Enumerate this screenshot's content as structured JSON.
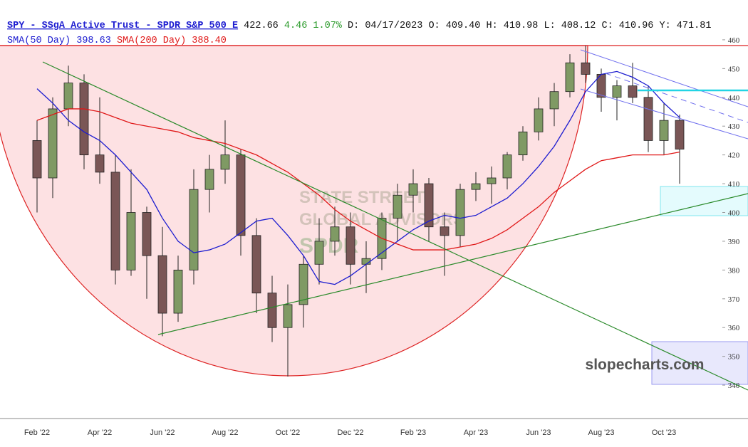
{
  "chart_data": {
    "type": "candlestick",
    "header": {
      "symbol": "SPY - SSgA Active Trust - SPDR S&P 500 E",
      "last": "422.66",
      "change": "4.46",
      "change_pct": "1.07%",
      "details": "D: 04/17/2023 O: 409.40 H: 410.98 L: 408.12 C: 410.96 Y: 471.81"
    },
    "watermark": "slopecharts.com",
    "logo": [
      "STATE STREET",
      "GLOBAL ADVISORS",
      "SPDR"
    ],
    "categories": [
      null,
      null,
      "Feb '22",
      null,
      null,
      null,
      "Apr '22",
      null,
      null,
      null,
      "Jun '22",
      null,
      null,
      null,
      "Aug '22",
      null,
      null,
      null,
      "Oct '22",
      null,
      null,
      null,
      "Dec '22",
      null,
      null,
      null,
      "Feb '23",
      null,
      null,
      null,
      "Apr '23",
      null,
      null,
      null,
      "Jun '23",
      null,
      null,
      null,
      "Aug '23",
      null,
      null,
      null,
      "Oct '23",
      null
    ],
    "ohlc": {
      "up_color": "#7f9a64",
      "down_color": "#7a5656",
      "open": [
        null,
        null,
        425,
        412,
        436,
        445,
        420,
        414,
        380,
        400,
        385,
        365,
        380,
        408,
        415,
        420,
        392,
        372,
        360,
        368,
        382,
        390,
        395,
        382,
        384,
        398,
        406,
        410,
        395,
        392,
        408,
        410,
        412,
        420,
        428,
        436,
        442,
        452,
        448,
        440,
        444,
        440,
        425,
        432
      ],
      "high": [
        null,
        null,
        432,
        440,
        451,
        448,
        440,
        420,
        415,
        402,
        395,
        385,
        415,
        420,
        432,
        422,
        398,
        378,
        375,
        385,
        398,
        402,
        400,
        390,
        400,
        410,
        415,
        412,
        400,
        410,
        414,
        416,
        421,
        430,
        440,
        445,
        455,
        458,
        450,
        446,
        452,
        444,
        438,
        434
      ],
      "low": [
        null,
        null,
        400,
        405,
        430,
        415,
        410,
        375,
        378,
        370,
        357,
        362,
        375,
        400,
        410,
        385,
        365,
        355,
        343,
        360,
        375,
        385,
        375,
        372,
        380,
        390,
        400,
        390,
        378,
        388,
        404,
        403,
        408,
        418,
        425,
        430,
        440,
        445,
        435,
        432,
        438,
        421,
        420,
        410
      ],
      "close": [
        null,
        null,
        412,
        436,
        445,
        420,
        414,
        380,
        400,
        385,
        365,
        380,
        408,
        415,
        420,
        392,
        372,
        360,
        368,
        382,
        390,
        395,
        382,
        384,
        398,
        406,
        410,
        395,
        392,
        408,
        410,
        412,
        420,
        428,
        436,
        442,
        452,
        448,
        440,
        444,
        440,
        425,
        432,
        422
      ]
    },
    "overlays": [
      {
        "name": "SMA(50 Day)",
        "last": "398.63",
        "color": "#1c1cd0",
        "values": [
          null,
          null,
          443,
          438,
          432,
          428,
          425,
          420,
          414,
          408,
          398,
          390,
          386,
          387,
          389,
          393,
          397,
          398,
          392,
          385,
          376,
          375,
          378,
          382,
          386,
          390,
          394,
          397,
          399,
          398,
          399,
          402,
          405,
          410,
          416,
          423,
          432,
          442,
          448,
          449,
          447,
          444,
          438,
          433
        ]
      },
      {
        "name": "SMA(200 Day)",
        "last": "388.40",
        "color": "#e01818",
        "values": [
          null,
          null,
          432,
          434,
          436,
          436,
          435,
          433,
          431,
          430,
          429,
          428,
          426,
          425,
          424,
          422,
          420,
          417,
          414,
          410,
          406,
          401,
          397,
          394,
          391,
          389,
          387,
          387,
          387,
          388,
          389,
          391,
          394,
          398,
          402,
          407,
          411,
          415,
          418,
          419,
          420,
          420,
          420,
          421
        ]
      }
    ],
    "ylim": [
      328.4,
      462.7
    ],
    "yticks": [
      340,
      350,
      360,
      370,
      380,
      390,
      400,
      410,
      420,
      430,
      440,
      450,
      460
    ]
  }
}
